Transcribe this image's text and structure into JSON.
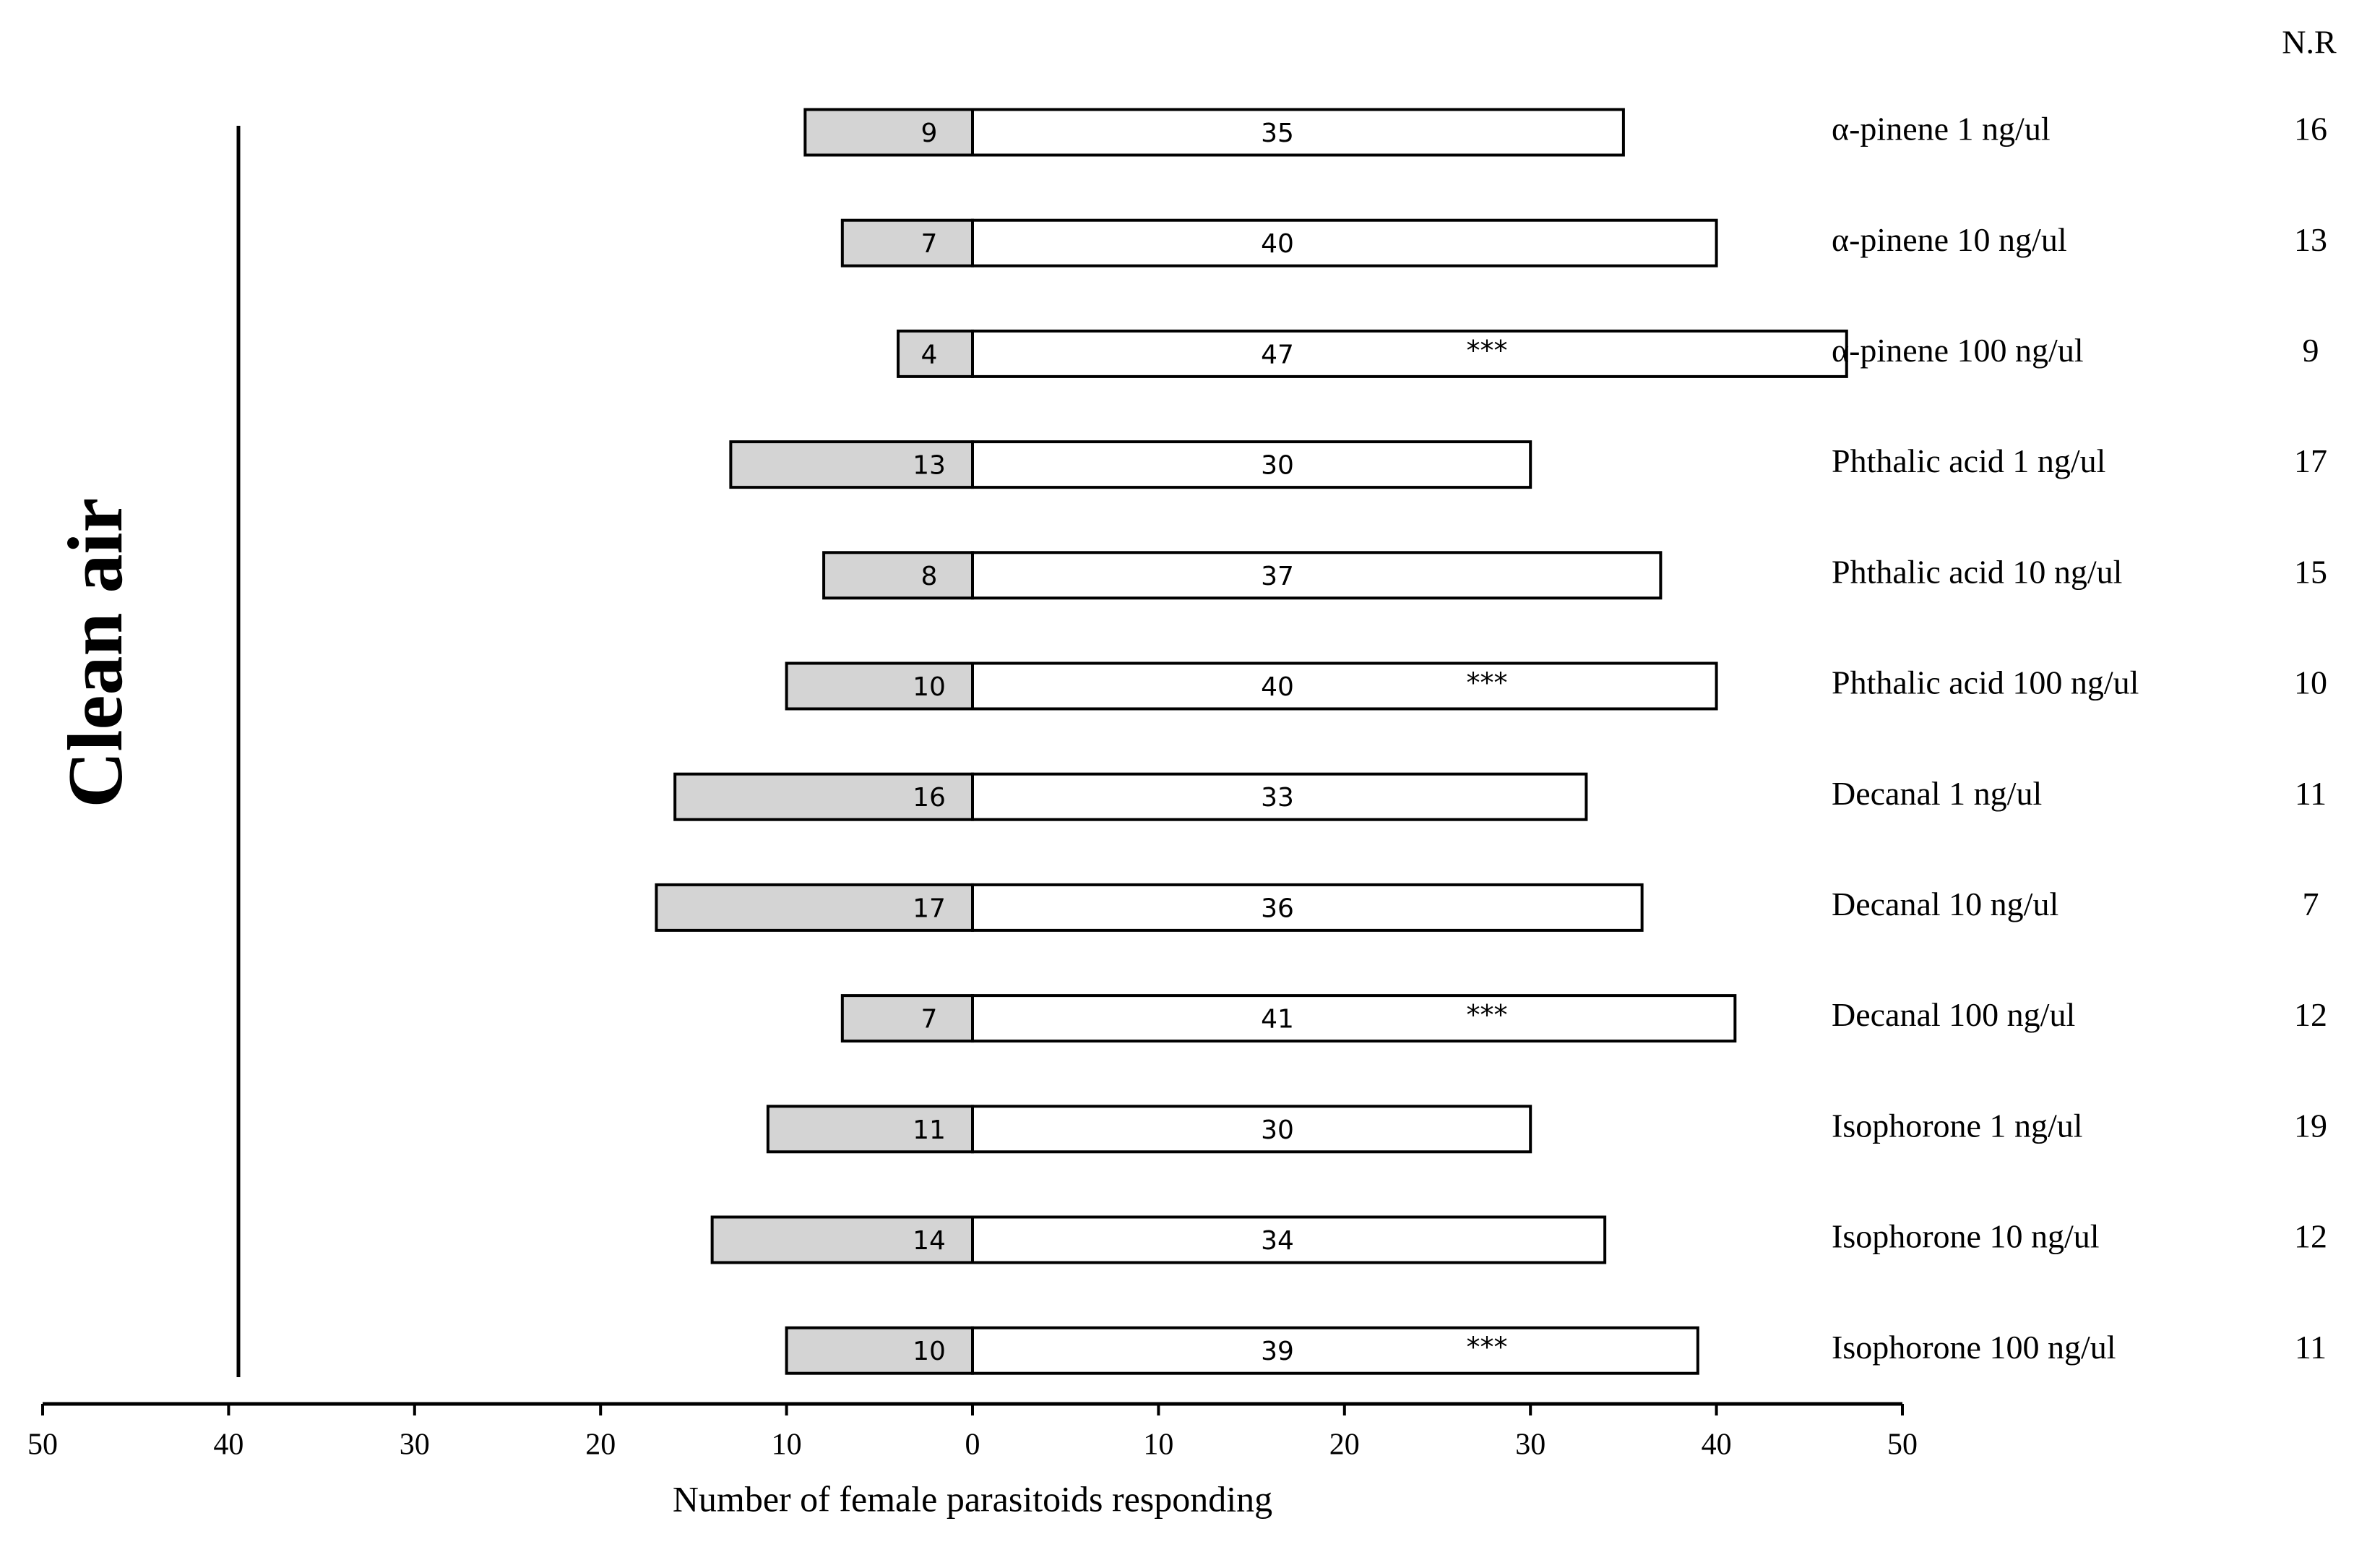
{
  "chart_data": {
    "type": "diverging-bar",
    "categories": [
      "α-pinene 1 ng/ul",
      "α-pinene 10 ng/ul",
      "α-pinene 100 ng/ul",
      "Phthalic acid 1 ng/ul",
      "Phthalic acid 10 ng/ul",
      "Phthalic acid 100 ng/ul",
      "Decanal 1 ng/ul",
      "Decanal 10 ng/ul",
      "Decanal 100 ng/ul",
      "Isophorone 1 ng/ul",
      "Isophorone 10 ng/ul",
      "Isophorone 100 ng/ul"
    ],
    "series": [
      {
        "name": "Clean air",
        "color": "#d4d4d4",
        "values": [
          -9,
          -7,
          -4,
          -13,
          -8,
          -10,
          -16,
          -17,
          -7,
          -11,
          -14,
          -10
        ],
        "value_labels": [
          "9",
          "7",
          "4",
          "13",
          "8",
          "10",
          "16",
          "17",
          "7",
          "11",
          "14",
          "10"
        ]
      },
      {
        "color": "#ffffff",
        "values": [
          35,
          40,
          47,
          30,
          37,
          40,
          33,
          36,
          41,
          30,
          34,
          39
        ]
      }
    ],
    "significance": [
      null,
      null,
      "***",
      null,
      null,
      "***",
      null,
      null,
      "***",
      null,
      null,
      "***"
    ],
    "nr_label": "N.R",
    "nr": [
      16,
      13,
      9,
      17,
      15,
      10,
      11,
      7,
      12,
      19,
      12,
      11
    ],
    "xlabel": "Number of female parasitoids responding",
    "xlim": [
      -50,
      50
    ],
    "xticks": [
      {
        "value": -50,
        "label": "50"
      },
      {
        "value": -40,
        "label": "40"
      },
      {
        "value": -30,
        "label": "30"
      },
      {
        "value": -20,
        "label": "20"
      },
      {
        "value": -10,
        "label": "10"
      },
      0,
      10,
      20,
      30,
      40,
      50
    ]
  }
}
